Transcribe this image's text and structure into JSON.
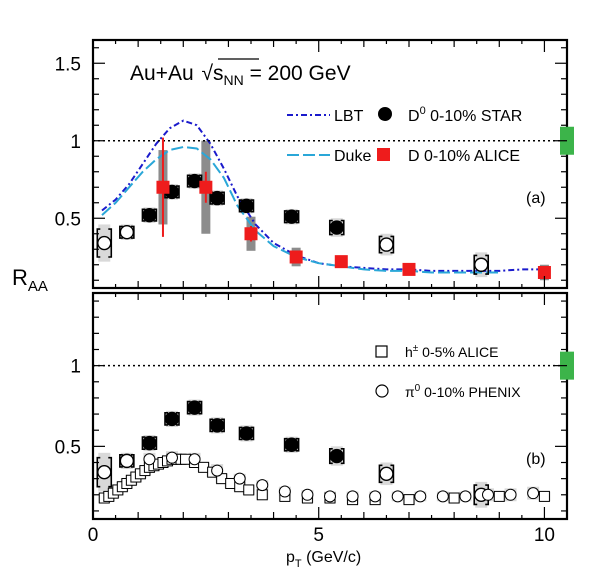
{
  "colors": {
    "frame": "#000000",
    "black": "#000000",
    "alice_d": "#ee1c1c",
    "lbt": "#1a1acc",
    "duke": "#2aa7d8",
    "norm_box": "#3cb44a",
    "stat_bar_gray": "#8c8c8c",
    "sys_band": "#d9d9d9",
    "ref_line": "#000000"
  },
  "panels": [
    {
      "id": "a",
      "label": "(a)",
      "ylim": [
        0.05,
        1.65
      ],
      "yticks": [
        0.5,
        1,
        1.5
      ],
      "ytick_labels": [
        "0.5",
        "1",
        "1.5"
      ]
    },
    {
      "id": "b",
      "label": "(b)",
      "ylim": [
        0.05,
        1.45
      ],
      "yticks": [
        0.5,
        1
      ],
      "ytick_labels": [
        "0.5",
        "1"
      ]
    }
  ],
  "xaxis": {
    "xlim": [
      0,
      10.5
    ],
    "ticks": [
      0,
      5,
      10
    ],
    "tick_labels": [
      "0",
      "5",
      "10"
    ],
    "label_main": "p",
    "label_sub": "T",
    "label_rest": " (GeV/c)"
  },
  "yaxis": {
    "label_main": "R",
    "label_sub": "AA"
  },
  "annotation": {
    "prefix": "Au+Au ",
    "sqrt_main": "s",
    "sqrt_sub": "NN",
    "suffix": " = 200 GeV"
  },
  "legend_a": [
    {
      "label": "LBT"
    },
    {
      "label_main": "D",
      "label_sup": "0",
      "label_rest": " 0-10% STAR"
    },
    {
      "label": "Duke"
    },
    {
      "label": "D 0-10% ALICE"
    }
  ],
  "legend_b": [
    {
      "label_main": "h",
      "label_sup": "±",
      "label_rest": " 0-5% ALICE"
    },
    {
      "label_main": "π",
      "label_sup": "0",
      "label_rest": " 0-10% PHENIX"
    }
  ],
  "chart_data": {
    "type": "scatter",
    "reference_line": 1,
    "series": [
      {
        "name": "D0 0-10% STAR",
        "panels": [
          "a",
          "b"
        ],
        "x": [
          0.25,
          0.75,
          1.25,
          1.75,
          2.25,
          2.75,
          3.4,
          4.4,
          5.4,
          6.5,
          8.6
        ],
        "y": [
          0.34,
          0.41,
          0.52,
          0.67,
          0.74,
          0.63,
          0.58,
          0.51,
          0.44,
          0.33,
          0.2
        ],
        "err": [
          0.06,
          0.04,
          0.04,
          0.04,
          0.04,
          0.04,
          0.04,
          0.04,
          0.05,
          0.06,
          0.07
        ],
        "sys": [
          0.12,
          0.05,
          0.05,
          0.05,
          0.05,
          0.05,
          0.05,
          0.05,
          0.06,
          0.07,
          0.08
        ],
        "hollow_first": 2,
        "hollow_last_from": 9
      },
      {
        "name": "D 0-10% ALICE",
        "panels": [
          "a"
        ],
        "x": [
          1.55,
          2.5,
          3.5,
          4.5,
          5.5,
          7.0,
          10.0
        ],
        "y": [
          0.7,
          0.7,
          0.4,
          0.25,
          0.22,
          0.17,
          0.15
        ],
        "err": [
          0.32,
          0.1,
          0.05,
          0.03,
          0.02,
          0.02,
          0.02
        ],
        "sys": [
          0.24,
          0.3,
          0.11,
          0.06,
          0.04,
          0.04,
          0.05
        ]
      },
      {
        "name": "LBT",
        "panels": [
          "a"
        ],
        "style": "dash-dot",
        "x": [
          0.2,
          0.5,
          0.8,
          1.1,
          1.4,
          1.7,
          2.0,
          2.3,
          2.6,
          2.9,
          3.2,
          3.6,
          4.0,
          4.5,
          5.0,
          5.5,
          6.0,
          6.5,
          7.0,
          7.5,
          8.0,
          8.5,
          9.0,
          9.5,
          10.0
        ],
        "y": [
          0.55,
          0.62,
          0.72,
          0.85,
          0.98,
          1.08,
          1.13,
          1.1,
          0.98,
          0.82,
          0.64,
          0.46,
          0.34,
          0.26,
          0.21,
          0.19,
          0.18,
          0.17,
          0.17,
          0.16,
          0.16,
          0.16,
          0.16,
          0.17,
          0.17
        ]
      },
      {
        "name": "Duke",
        "panels": [
          "a"
        ],
        "style": "long-dash",
        "x": [
          0.2,
          0.5,
          0.8,
          1.1,
          1.4,
          1.7,
          2.0,
          2.3,
          2.6,
          2.9,
          3.2,
          3.6,
          4.0,
          4.5,
          5.0,
          5.5,
          6.0,
          6.5,
          7.0,
          7.5,
          8.0,
          8.5,
          9.0
        ],
        "y": [
          0.52,
          0.6,
          0.7,
          0.8,
          0.88,
          0.94,
          0.96,
          0.95,
          0.88,
          0.76,
          0.58,
          0.42,
          0.32,
          0.25,
          0.21,
          0.19,
          0.17,
          0.16,
          0.16,
          0.15,
          0.15,
          0.15,
          0.15
        ]
      },
      {
        "name": "h± 0-5% ALICE",
        "panels": [
          "b"
        ],
        "marker": "open-square",
        "x": [
          0.25,
          0.35,
          0.45,
          0.55,
          0.65,
          0.75,
          0.85,
          0.95,
          1.05,
          1.15,
          1.25,
          1.35,
          1.45,
          1.55,
          1.65,
          1.75,
          1.85,
          1.95,
          2.05,
          2.25,
          2.45,
          2.65,
          2.85,
          3.05,
          3.25,
          3.45,
          3.75,
          4.25,
          4.75,
          5.25,
          5.75,
          6.25,
          7.0,
          8.0,
          9.0,
          10.0
        ],
        "y": [
          0.18,
          0.19,
          0.21,
          0.23,
          0.25,
          0.27,
          0.29,
          0.31,
          0.33,
          0.35,
          0.37,
          0.38,
          0.39,
          0.4,
          0.41,
          0.42,
          0.42,
          0.42,
          0.42,
          0.4,
          0.37,
          0.34,
          0.3,
          0.27,
          0.25,
          0.23,
          0.2,
          0.19,
          0.18,
          0.18,
          0.17,
          0.17,
          0.17,
          0.18,
          0.19,
          0.19
        ],
        "sys": [
          0.03,
          0.03,
          0.03,
          0.03,
          0.03,
          0.03,
          0.03,
          0.03,
          0.03,
          0.03,
          0.03,
          0.03,
          0.03,
          0.03,
          0.03,
          0.03,
          0.03,
          0.03,
          0.03,
          0.03,
          0.03,
          0.03,
          0.03,
          0.03,
          0.03,
          0.03,
          0.03,
          0.03,
          0.03,
          0.03,
          0.03,
          0.03,
          0.03,
          0.03,
          0.03,
          0.03
        ]
      },
      {
        "name": "π0 0-10% PHENIX",
        "panels": [
          "b"
        ],
        "marker": "open-circle",
        "x": [
          1.25,
          1.75,
          2.25,
          2.75,
          3.25,
          3.75,
          4.25,
          4.75,
          5.25,
          5.75,
          6.25,
          6.75,
          7.25,
          7.75,
          8.25,
          8.75,
          9.25,
          9.75
        ],
        "y": [
          0.42,
          0.43,
          0.42,
          0.35,
          0.3,
          0.26,
          0.22,
          0.2,
          0.19,
          0.19,
          0.19,
          0.19,
          0.19,
          0.19,
          0.19,
          0.2,
          0.2,
          0.21
        ],
        "sys": [
          0.04,
          0.04,
          0.04,
          0.04,
          0.03,
          0.03,
          0.03,
          0.03,
          0.03,
          0.03,
          0.03,
          0.03,
          0.03,
          0.03,
          0.03,
          0.04,
          0.04,
          0.04
        ]
      }
    ]
  }
}
